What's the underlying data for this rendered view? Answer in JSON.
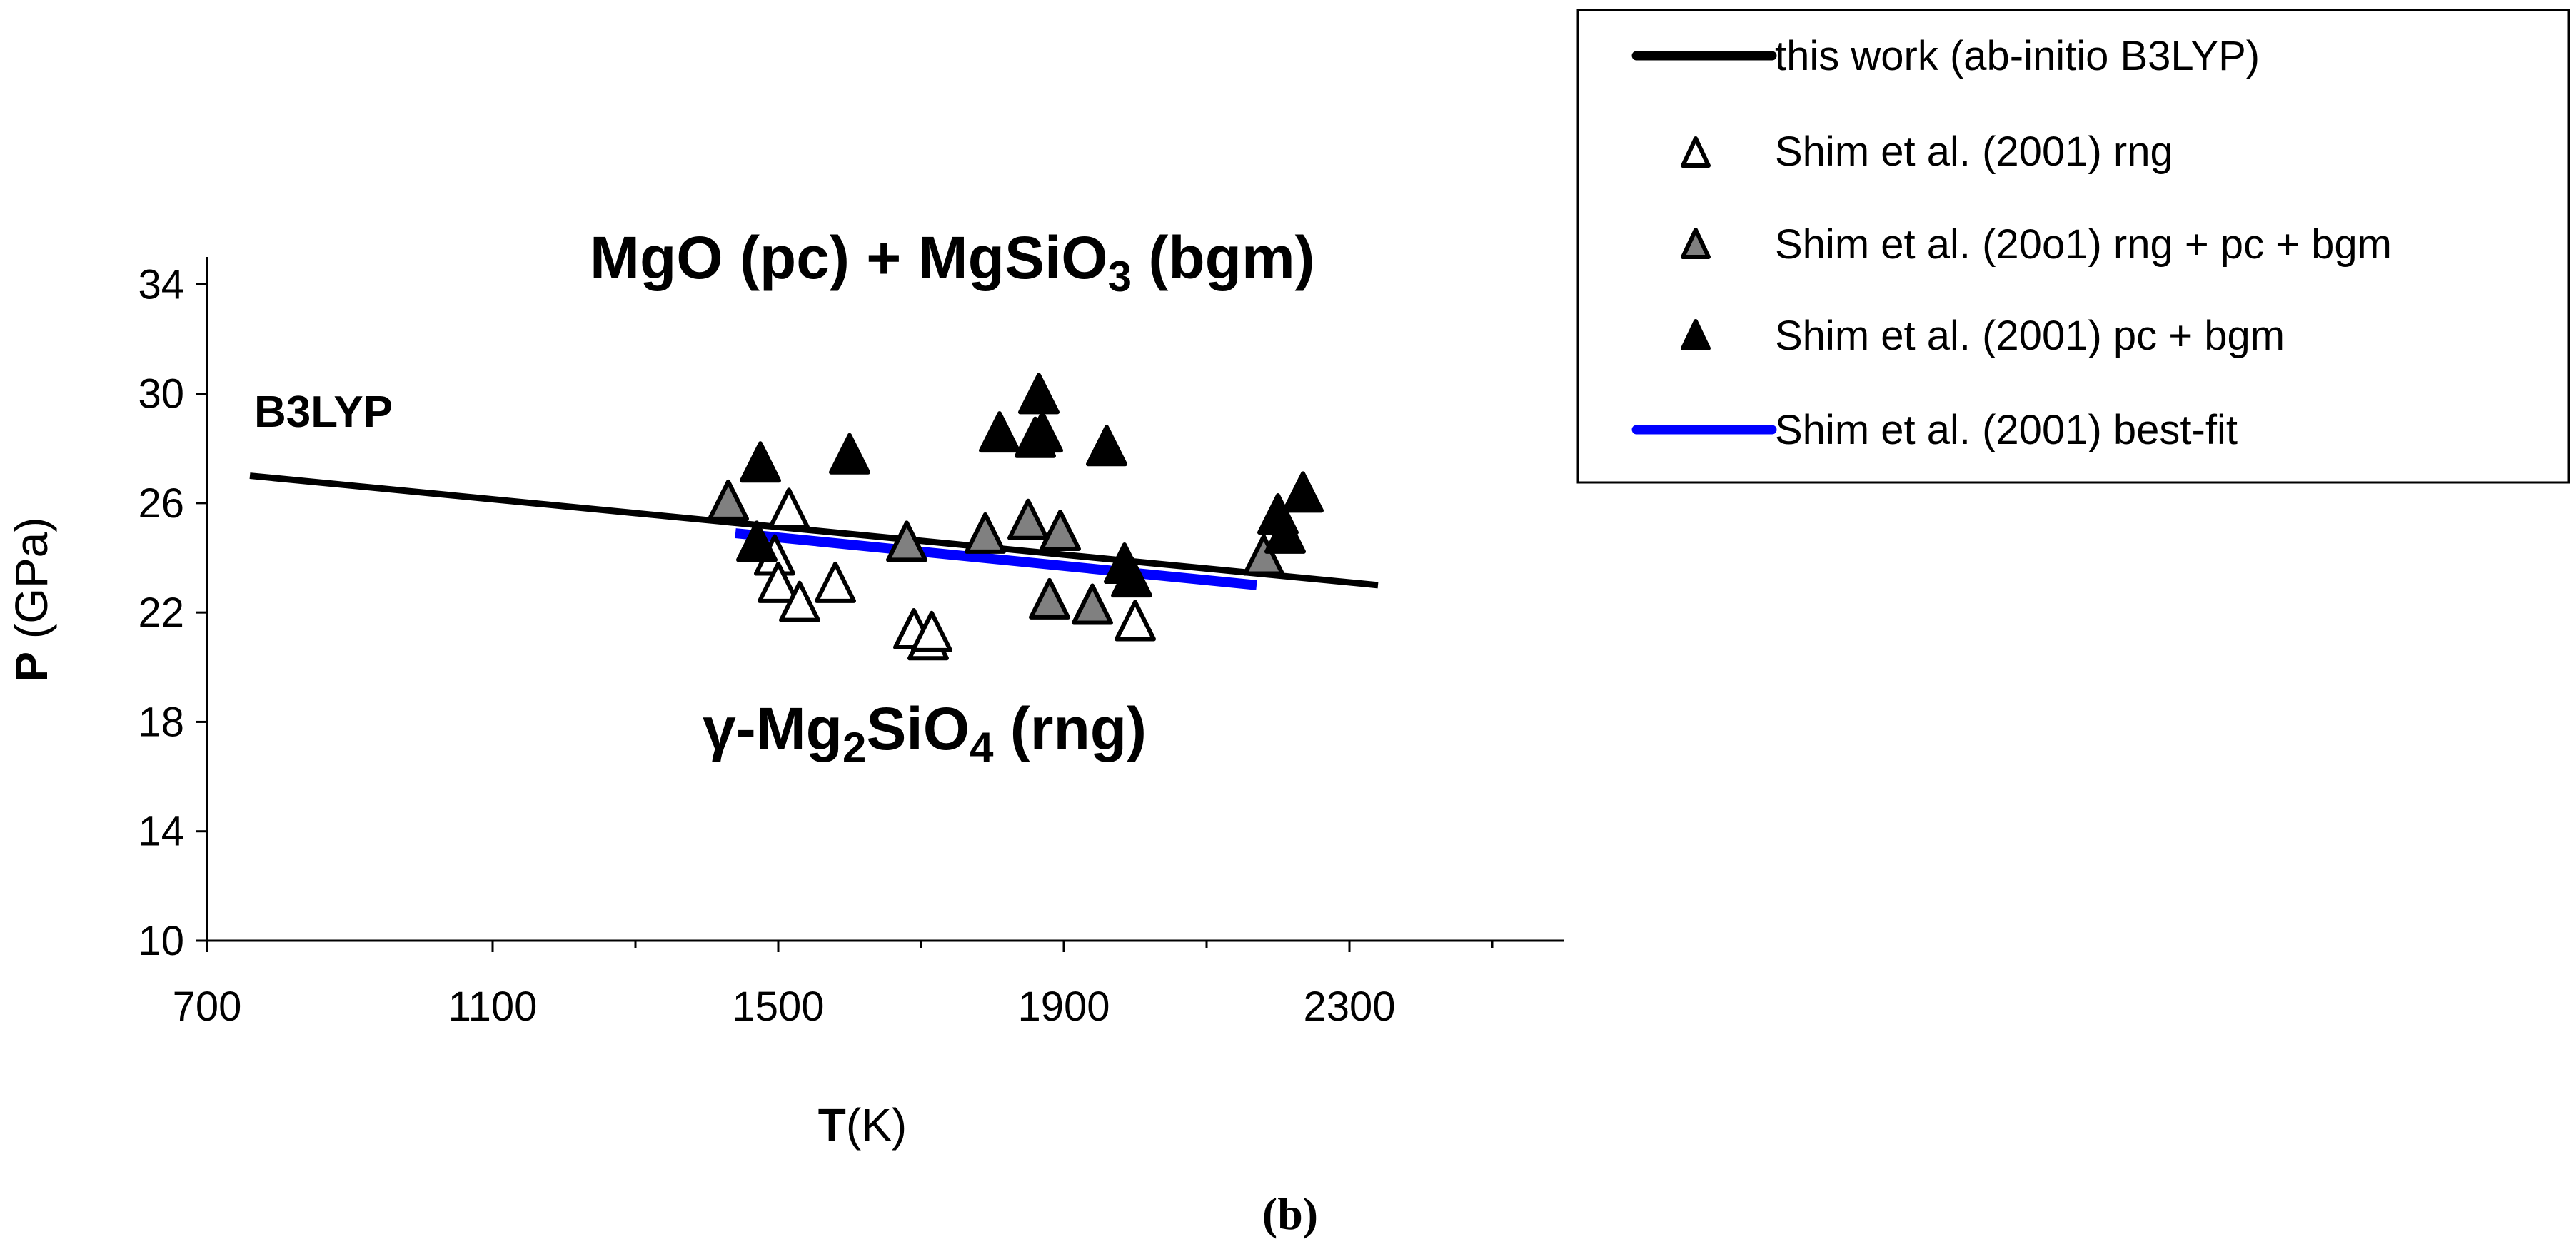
{
  "chart_data": {
    "type": "scatter",
    "xlabel_bold": "T",
    "xlabel_unit": "(K)",
    "ylabel_bold": "P",
    "ylabel_unit": " (GPa)",
    "xlim": [
      700,
      2600
    ],
    "ylim": [
      10,
      35
    ],
    "x_ticks": [
      700,
      1100,
      1500,
      1900,
      2300
    ],
    "y_ticks": [
      10,
      14,
      18,
      22,
      26,
      30,
      34
    ],
    "annotations": {
      "b3lyp": "B3LYP",
      "upper_phase": {
        "a": "MgO (pc) + MgSiO",
        "sub": "3",
        "b": " (bgm)"
      },
      "lower_phase": {
        "a": "γ-Mg",
        "sub1": "2",
        "b": "SiO",
        "sub2": "4",
        "c": " (rng)"
      }
    },
    "caption": "(b)",
    "series": [
      {
        "name": "this work (ab-initio B3LYP)",
        "kind": "line",
        "color": "#000000",
        "x": [
          760,
          2340
        ],
        "y": [
          27.0,
          23.0
        ]
      },
      {
        "name": "Shim et al. (2001) rng",
        "kind": "marker",
        "fill": "#ffffff",
        "x": [
          1495,
          1500,
          1515,
          1530,
          1580,
          1690,
          1710,
          1715,
          2000
        ],
        "y": [
          24.0,
          23.0,
          25.7,
          22.3,
          23.0,
          21.3,
          20.9,
          21.2,
          21.6
        ]
      },
      {
        "name": "Shim et al. (20o1) rng + pc + bgm",
        "kind": "marker",
        "fill": "#808080",
        "x": [
          1430,
          1680,
          1790,
          1850,
          1895,
          1880,
          1940,
          2180
        ],
        "y": [
          26.0,
          24.5,
          24.8,
          25.3,
          24.9,
          22.4,
          22.2,
          24.0
        ]
      },
      {
        "name": "Shim et al. (2001) pc + bgm",
        "kind": "marker",
        "fill": "#000000",
        "x": [
          1470,
          1475,
          1600,
          1810,
          1860,
          1865,
          1870,
          1960,
          1985,
          1995,
          2200,
          2210,
          2235
        ],
        "y": [
          24.5,
          27.4,
          27.7,
          28.5,
          28.3,
          29.9,
          28.5,
          28.0,
          23.7,
          23.2,
          25.5,
          24.8,
          26.3
        ]
      },
      {
        "name": "Shim et al. (2001) best-fit",
        "kind": "line",
        "color": "#0000ff",
        "x": [
          1440,
          2170
        ],
        "y": [
          24.9,
          23.0
        ]
      }
    ]
  }
}
